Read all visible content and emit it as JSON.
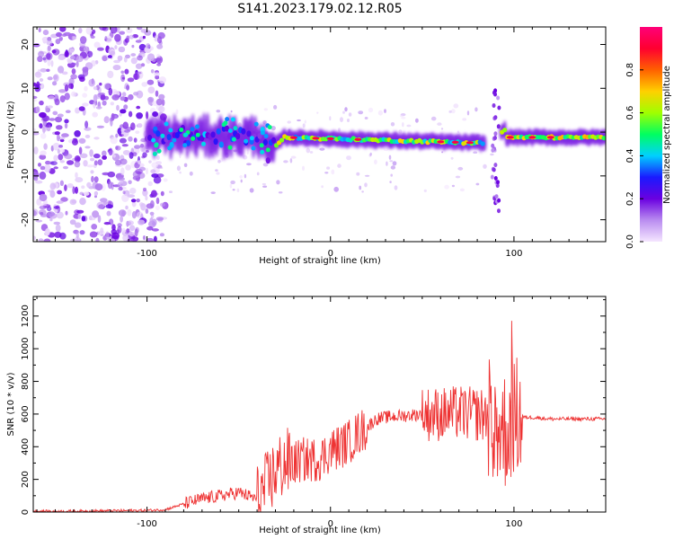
{
  "title": "S141.2023.179.02.12.R05",
  "chart_data": [
    {
      "type": "heatmap",
      "xlabel": "Height of straight line (km)",
      "ylabel": "Frequency (Hz)",
      "xlim": [
        -162,
        150
      ],
      "ylim": [
        -25,
        24
      ],
      "xticks": [
        -100,
        0,
        100
      ],
      "yticks": [
        -20,
        -10,
        0,
        10,
        20
      ],
      "colorbar": {
        "label": "Normalized spectral amplitude",
        "range": [
          0,
          1
        ],
        "ticks": [
          0.0,
          0.2,
          0.4,
          0.6,
          0.8
        ],
        "colors": [
          "#f5e6ff",
          "#b98cf0",
          "#6a00e0",
          "#1a1aff",
          "#00d0ff",
          "#00ff60",
          "#a0ff00",
          "#ffd000",
          "#ff6000",
          "#ff0030",
          "#ff0078"
        ]
      },
      "features": [
        {
          "x_range": [
            -162,
            -90
          ],
          "y_range": [
            -25,
            24
          ],
          "amplitude": 0.1
        },
        {
          "x_range": [
            -100,
            -30
          ],
          "y_range": [
            -4,
            3
          ],
          "amplitude": 0.3
        },
        {
          "x_range": [
            -40,
            -25
          ],
          "y_range": [
            -10,
            -3
          ],
          "amplitude": 0.2
        },
        {
          "x_range": [
            -25,
            80
          ],
          "y_range": [
            -3,
            0
          ],
          "amplitude": 0.55
        },
        {
          "x_range": [
            85,
            92
          ],
          "y_range": [
            -5,
            3
          ],
          "amplitude": 0.15
        },
        {
          "x_range": [
            92,
            150
          ],
          "y_range": [
            -2,
            0
          ],
          "amplitude": 0.6
        }
      ]
    },
    {
      "type": "line",
      "xlabel": "Height of straight line (km)",
      "ylabel": "SNR (10 * v/v)",
      "xlim": [
        -162,
        150
      ],
      "ylim": [
        0,
        1320
      ],
      "xticks": [
        -100,
        0,
        100
      ],
      "yticks": [
        0,
        200,
        400,
        600,
        800,
        1000,
        1200
      ],
      "color": "#ee3333",
      "x": [
        -162,
        -140,
        -120,
        -100,
        -90,
        -80,
        -70,
        -60,
        -50,
        -40,
        -35,
        -30,
        -25,
        -20,
        -15,
        -10,
        -5,
        0,
        5,
        10,
        15,
        20,
        25,
        30,
        40,
        50,
        55,
        60,
        65,
        70,
        75,
        80,
        85,
        90,
        95,
        100,
        105,
        110,
        120,
        130,
        140,
        150
      ],
      "y": [
        5,
        5,
        8,
        10,
        15,
        50,
        80,
        100,
        120,
        80,
        150,
        250,
        300,
        300,
        320,
        320,
        330,
        380,
        400,
        430,
        480,
        520,
        570,
        580,
        590,
        600,
        600,
        600,
        600,
        610,
        600,
        600,
        590,
        550,
        500,
        580,
        580,
        580,
        570,
        570,
        570,
        570
      ]
    }
  ]
}
